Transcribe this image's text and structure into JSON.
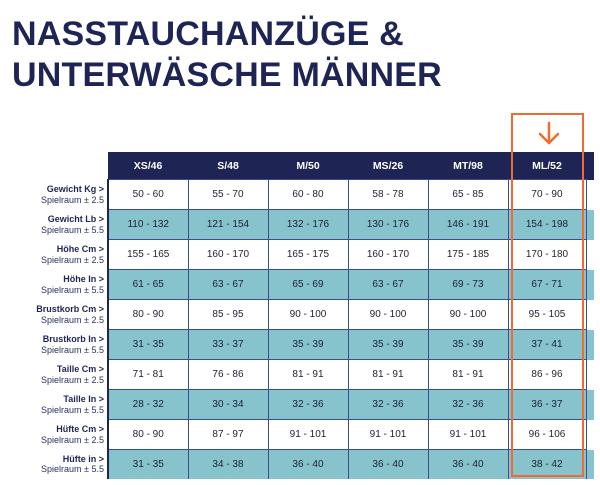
{
  "title": {
    "line1": "NASSTAUCHANZÜGE &",
    "line2": "UNTERWÄSCHE MÄNNER"
  },
  "table": {
    "headers": [
      "XS/46",
      "S/48",
      "M/50",
      "MS/26",
      "MT/98",
      "ML/52"
    ],
    "rows": [
      {
        "label": "Gewicht Kg >",
        "tolerance": "Spielraum ± 2.5",
        "values": [
          "50 - 60",
          "55 - 70",
          "60 - 80",
          "58 - 78",
          "65 - 85",
          "70 - 90"
        ]
      },
      {
        "label": "Gewicht Lb >",
        "tolerance": "Spielraum ± 5.5",
        "values": [
          "110 - 132",
          "121 - 154",
          "132 - 176",
          "130 - 176",
          "146 - 191",
          "154 - 198"
        ]
      },
      {
        "label": "Höhe Cm >",
        "tolerance": "Spielraum ± 2.5",
        "values": [
          "155 - 165",
          "160 - 170",
          "165 - 175",
          "160 - 170",
          "175 - 185",
          "170 - 180"
        ]
      },
      {
        "label": "Höhe In >",
        "tolerance": "Spielraum ± 5.5",
        "values": [
          "61 - 65",
          "63 - 67",
          "65 - 69",
          "63 - 67",
          "69 - 73",
          "67 - 71"
        ]
      },
      {
        "label": "Brustkorb Cm >",
        "tolerance": "Spielraum ± 2.5",
        "values": [
          "80 - 90",
          "85 - 95",
          "90 - 100",
          "90 - 100",
          "90 - 100",
          "95 - 105"
        ]
      },
      {
        "label": "Brustkorb In >",
        "tolerance": "Spielraum ± 5.5",
        "values": [
          "31 - 35",
          "33 - 37",
          "35 - 39",
          "35 - 39",
          "35 - 39",
          "37 - 41"
        ]
      },
      {
        "label": "Taille Cm >",
        "tolerance": "Spielraum ± 2.5",
        "values": [
          "71 - 81",
          "76 - 86",
          "81 - 91",
          "81 - 91",
          "81 - 91",
          "86 - 96"
        ]
      },
      {
        "label": "Taille In >",
        "tolerance": "Spielraum ± 5.5",
        "values": [
          "28 - 32",
          "30 - 34",
          "32 - 36",
          "32 - 36",
          "32 - 36",
          "36 - 37"
        ]
      },
      {
        "label": "Hüfte Cm >",
        "tolerance": "Spielraum ± 2.5",
        "values": [
          "80 - 90",
          "87 - 97",
          "91 - 101",
          "91 - 101",
          "91 - 101",
          "96 - 106"
        ]
      },
      {
        "label": "Hüfte in >",
        "tolerance": "Spielraum ± 5.5",
        "values": [
          "31 - 35",
          "34 - 38",
          "36 - 40",
          "36 - 40",
          "36 - 40",
          "38 - 42"
        ]
      }
    ]
  },
  "highlight": {
    "column": "ML/52",
    "color": "#f06a31",
    "icon": "arrow-down-icon"
  },
  "colors": {
    "navy": "#1e2454",
    "teal": "#86c3cc",
    "accent": "#f06a31"
  }
}
